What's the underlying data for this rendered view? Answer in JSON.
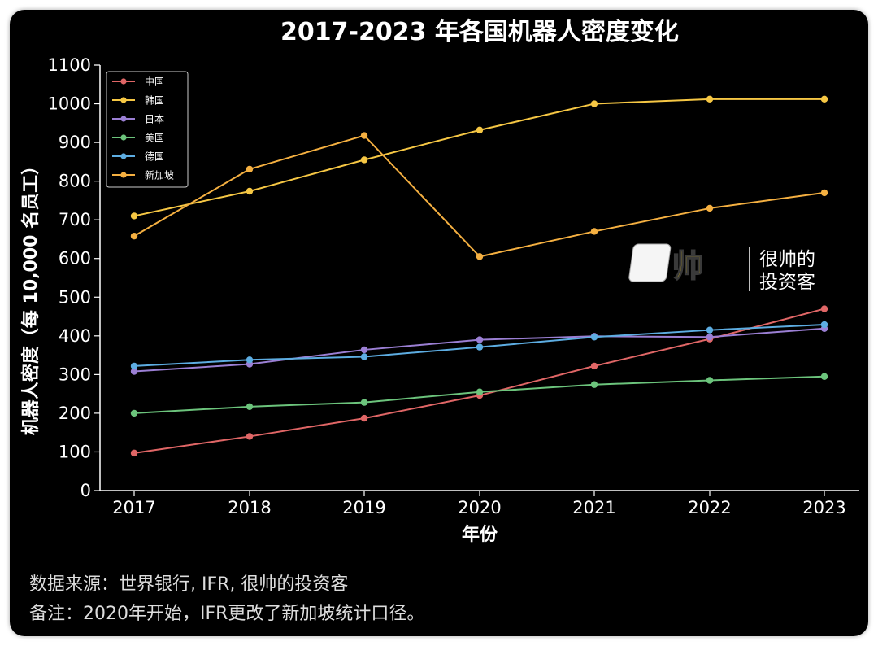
{
  "chart_data": {
    "type": "line",
    "title": "2017-2023 年各国机器人密度变化",
    "xlabel": "年份",
    "ylabel": "机器人密度（每 10,000 名员工）",
    "x": [
      "2017",
      "2018",
      "2019",
      "2020",
      "2021",
      "2022",
      "2023"
    ],
    "ylim": [
      0,
      1100
    ],
    "yticks": [
      0,
      100,
      200,
      300,
      400,
      500,
      600,
      700,
      800,
      900,
      1000,
      1100
    ],
    "grid": false,
    "legend_position": "top-left",
    "series": [
      {
        "name": "中国",
        "color": "#e06666",
        "values": [
          97,
          140,
          187,
          246,
          322,
          392,
          470
        ]
      },
      {
        "name": "韩国",
        "color": "#f6c744",
        "values": [
          710,
          774,
          855,
          932,
          1000,
          1012,
          1012
        ]
      },
      {
        "name": "日本",
        "color": "#9b7fd4",
        "values": [
          308,
          327,
          364,
          390,
          399,
          397,
          419
        ]
      },
      {
        "name": "美国",
        "color": "#6cc47c",
        "values": [
          200,
          217,
          228,
          255,
          274,
          285,
          295
        ]
      },
      {
        "name": "德国",
        "color": "#5dade2",
        "values": [
          322,
          338,
          346,
          371,
          397,
          415,
          429
        ]
      },
      {
        "name": "新加坡",
        "color": "#f5b041",
        "values": [
          658,
          831,
          918,
          605,
          670,
          730,
          770
        ]
      }
    ]
  },
  "watermark": {
    "logo_glyph": "帅",
    "line1": "很帅的",
    "line2": "投资客"
  },
  "notes": {
    "source": "数据来源：世界银行, IFR, 很帅的投资客",
    "remark": "备注：2020年开始，IFR更改了新加坡统计口径。"
  },
  "colors": {
    "background": "#000000",
    "axis": "#ffffff",
    "text": "#ffffff",
    "note_text": "#dddddd",
    "logo_fill": "#e8c410"
  }
}
